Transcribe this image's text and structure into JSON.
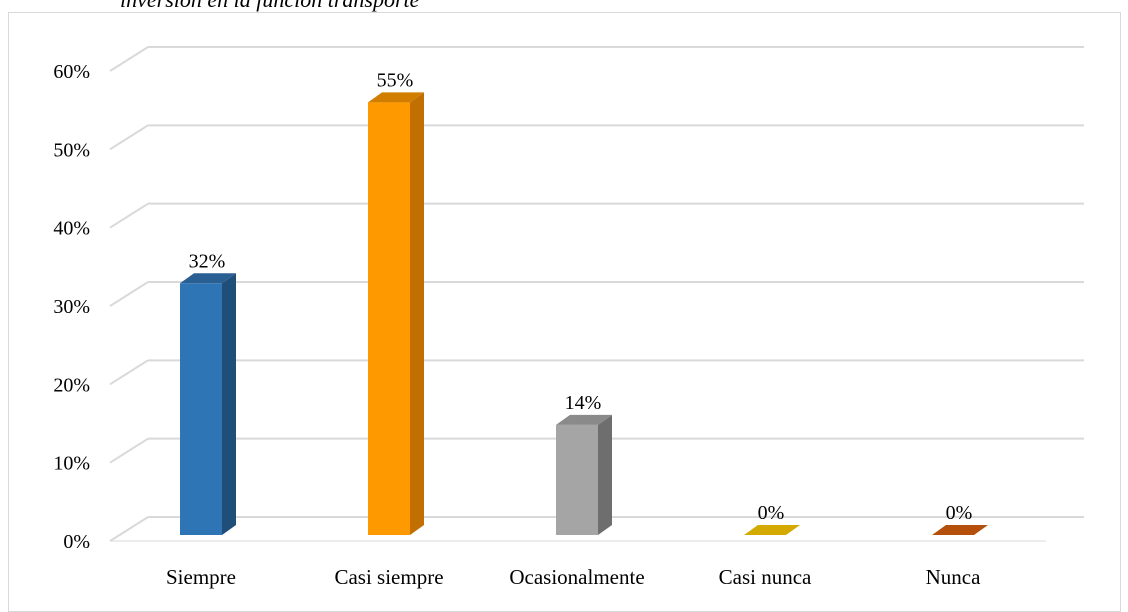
{
  "chart_data": {
    "type": "bar",
    "title": "inversión en la función transporte",
    "categories": [
      "Siempre",
      "Casi siempre",
      "Ocasionalmente",
      "Casi nunca",
      "Nunca"
    ],
    "values": [
      32,
      55,
      14,
      0,
      0
    ],
    "data_labels": [
      "32%",
      "55%",
      "14%",
      "0%",
      "0%"
    ],
    "ylim": [
      0,
      60
    ],
    "y_ticks": [
      0,
      10,
      20,
      30,
      40,
      50,
      60
    ],
    "y_tick_labels": [
      "0%",
      "10%",
      "20%",
      "30%",
      "40%",
      "50%",
      "60%"
    ],
    "xlabel": "",
    "ylabel": "",
    "grid": true,
    "style": "3d-column",
    "colors": [
      "#2e75b6",
      "#ff9900",
      "#a5a5a5",
      "#d4a900",
      "#b5500c"
    ],
    "side_colors": [
      "#1f4e79",
      "#c06f00",
      "#6e6e6e",
      "#9e7f00",
      "#7a360a"
    ],
    "top_colors": [
      "#2a5f94",
      "#d17d00",
      "#8a8a8a",
      "#b89400",
      "#8f3f0a"
    ]
  }
}
